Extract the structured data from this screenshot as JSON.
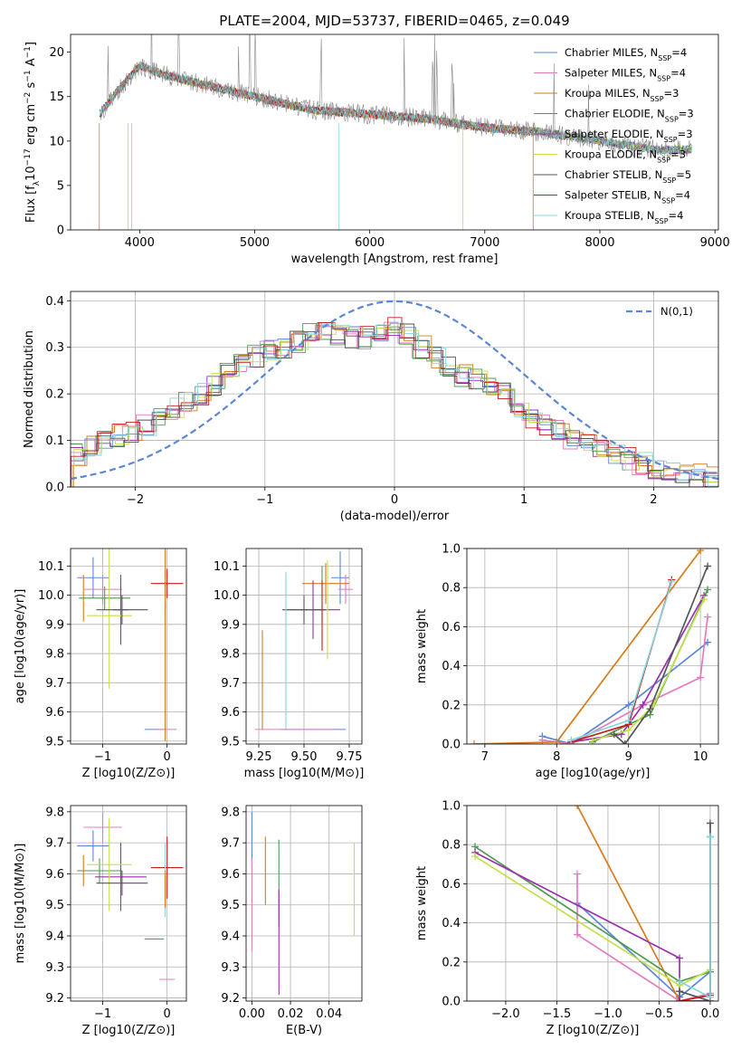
{
  "colors": {
    "series": [
      "#5b87d4",
      "#e37cbf",
      "#d97a1a",
      "#4f9a4f",
      "#9b2fb0",
      "#c2e04a",
      "#555555",
      "#c51c1c",
      "#86d6dc"
    ],
    "gauss": "#5b87d4"
  },
  "chart_data": [
    {
      "type": "line",
      "title": "PLATE=2004, MJD=53737, FIBERID=0465, z=0.049",
      "xlabel": "wavelength [Angstrom, rest frame]",
      "ylabel_parts": [
        "Flux [f",
        "λ",
        "10",
        "−17",
        " erg cm",
        "−2",
        " s",
        "−1",
        " A",
        "−1",
        "]"
      ],
      "xlim": [
        3400,
        9030
      ],
      "ylim": [
        0,
        22
      ],
      "xticks": [
        4000,
        5000,
        6000,
        7000,
        8000,
        9000
      ],
      "yticks": [
        0,
        5,
        10,
        15,
        20
      ],
      "legend_position": "top-right",
      "legend": [
        {
          "name": "Chabrier MILES",
          "n": "4"
        },
        {
          "name": "Salpeter MILES",
          "n": "4"
        },
        {
          "name": "Kroupa MILES",
          "n": "3"
        },
        {
          "name": "Chabrier ELODIE",
          "n": "3"
        },
        {
          "name": "Salpeter ELODIE",
          "n": "3"
        },
        {
          "name": "Kroupa ELODIE",
          "n": "3"
        },
        {
          "name": "Chabrier STELIB",
          "n": "5"
        },
        {
          "name": "Salpeter STELIB",
          "n": "4"
        },
        {
          "name": "Kroupa STELIB",
          "n": "4"
        }
      ],
      "legend_sub": "SSP",
      "legend_prefix": "N",
      "continuum": [
        [
          3650,
          13.0
        ],
        [
          3800,
          15.5
        ],
        [
          4000,
          18.5
        ],
        [
          4200,
          17.5
        ],
        [
          4500,
          16.5
        ],
        [
          5000,
          15.0
        ],
        [
          5500,
          13.5
        ],
        [
          6000,
          13.0
        ],
        [
          6500,
          12.5
        ],
        [
          7000,
          11.5
        ],
        [
          7500,
          11.0
        ],
        [
          8000,
          10.0
        ],
        [
          8500,
          9.0
        ],
        [
          8800,
          9.0
        ]
      ]
    },
    {
      "type": "step",
      "xlabel": "(data-model)/error",
      "ylabel": "Normed distribution",
      "xlim": [
        -2.5,
        2.5
      ],
      "ylim": [
        0,
        0.42
      ],
      "xticks": [
        -2,
        -1,
        0,
        1,
        2
      ],
      "yticks": [
        0.0,
        0.1,
        0.2,
        0.3,
        0.4
      ],
      "grid": true,
      "legend_position": "top-right",
      "legend": "N(0,1)",
      "histogram_mean": [
        0.07,
        0.09,
        0.1,
        0.11,
        0.12,
        0.135,
        0.15,
        0.17,
        0.18,
        0.2,
        0.22,
        0.25,
        0.27,
        0.28,
        0.29,
        0.3,
        0.31,
        0.33,
        0.34,
        0.33,
        0.32,
        0.32,
        0.33,
        0.34,
        0.33,
        0.3,
        0.28,
        0.26,
        0.24,
        0.23,
        0.22,
        0.2,
        0.17,
        0.15,
        0.13,
        0.12,
        0.1,
        0.09,
        0.08,
        0.07,
        0.06,
        0.05,
        0.04,
        0.035,
        0.03,
        0.025,
        0.02
      ]
    },
    {
      "type": "scatter",
      "xlabel": "Z [log10(Z/Z⊙)]",
      "ylabel": "age [log10(age/yr)]",
      "xlim": [
        -1.5,
        0.3
      ],
      "ylim": [
        9.49,
        10.16
      ],
      "xticks": [
        -1,
        0
      ],
      "yticks": [
        9.5,
        9.6,
        9.7,
        9.8,
        9.9,
        10.0,
        10.1
      ],
      "grid": true,
      "points": [
        {
          "x": -1.15,
          "y": 10.06,
          "xe": 0.25,
          "ye": 0.07
        },
        {
          "x": -1.0,
          "y": 10.02,
          "xe": 0.3,
          "ye": 0.05
        },
        {
          "x": -1.3,
          "y": 9.99,
          "xe": 0.0,
          "ye": 0.08
        },
        {
          "x": -0.97,
          "y": 9.99,
          "xe": 0.4,
          "ye": 0.04
        },
        {
          "x": -0.72,
          "y": 9.95,
          "xe": 0.12,
          "ye": 0.12
        },
        {
          "x": -0.9,
          "y": 9.93,
          "xe": 0.35,
          "ye": 0.25
        },
        {
          "x": -0.7,
          "y": 9.95,
          "xe": 0.4,
          "ye": 0.05
        },
        {
          "x": 0.0,
          "y": 10.04,
          "xe": 0.25,
          "ye": 0.05
        },
        {
          "x": -0.03,
          "y": 10.0,
          "xe": 0.0,
          "ye": 0.08
        },
        {
          "x": -0.2,
          "y": 9.54,
          "xe": 0.15,
          "ye": 0.0
        },
        {
          "x": 0.0,
          "y": 9.54,
          "xe": 0.15,
          "ye": 0.0
        },
        {
          "x": -0.03,
          "y": 9.86,
          "xe": 0.0,
          "ye": 0.36
        }
      ]
    },
    {
      "type": "scatter",
      "xlabel": "mass [log10(M/M⊙)]",
      "xlim": [
        9.18,
        9.82
      ],
      "ylim": [
        9.49,
        10.16
      ],
      "xticks": [
        9.25,
        9.5,
        9.75
      ],
      "xtick_labels": [
        "9.25",
        "9.50",
        "9.75"
      ],
      "yticks": [
        9.5,
        9.6,
        9.7,
        9.8,
        9.9,
        10.0,
        10.1
      ],
      "grid": true,
      "points": [
        {
          "x": 9.7,
          "y": 10.06,
          "xe": 0.05,
          "ye": 0.09
        },
        {
          "x": 9.73,
          "y": 10.02,
          "xe": 0.04,
          "ye": 0.05
        },
        {
          "x": 9.62,
          "y": 10.04,
          "xe": 0.13,
          "ye": 0.07
        },
        {
          "x": 9.6,
          "y": 10.0,
          "xe": 0.0,
          "ye": 0.1
        },
        {
          "x": 9.55,
          "y": 9.95,
          "xe": 0.15,
          "ye": 0.1
        },
        {
          "x": 9.63,
          "y": 9.95,
          "xe": 0.0,
          "ye": 0.17
        },
        {
          "x": 9.5,
          "y": 9.95,
          "xe": 0.12,
          "ye": 0.05
        },
        {
          "x": 9.6,
          "y": 9.93,
          "xe": 0.0,
          "ye": 0.12
        },
        {
          "x": 9.4,
          "y": 9.81,
          "xe": 0.0,
          "ye": 0.27
        },
        {
          "x": 9.55,
          "y": 9.54,
          "xe": 0.18,
          "ye": 0.0
        },
        {
          "x": 9.45,
          "y": 9.54,
          "xe": 0.22,
          "ye": 0.0
        },
        {
          "x": 9.27,
          "y": 9.71,
          "xe": 0.0,
          "ye": 0.17
        }
      ]
    },
    {
      "type": "line",
      "xlabel": "age [log10(age/yr)]",
      "ylabel": "mass weight",
      "xlim": [
        6.75,
        10.25
      ],
      "ylim": [
        0,
        1
      ],
      "xticks": [
        7,
        8,
        9,
        10
      ],
      "yticks": [
        0.0,
        0.2,
        0.4,
        0.6,
        0.8,
        1.0
      ],
      "grid": true,
      "series": [
        {
          "x": [
            7.8,
            8.2,
            9.0,
            10.1
          ],
          "y": [
            0.04,
            0.0,
            0.2,
            0.52
          ]
        },
        {
          "x": [
            7.8,
            8.2,
            9.2,
            10.0,
            10.1
          ],
          "y": [
            0.02,
            0.0,
            0.2,
            0.34,
            0.65
          ]
        },
        {
          "x": [
            6.85,
            8.0,
            10.0
          ],
          "y": [
            0.0,
            0.01,
            0.99
          ]
        },
        {
          "x": [
            8.5,
            9.0,
            9.3,
            10.1
          ],
          "y": [
            0.01,
            0.1,
            0.15,
            0.79
          ]
        },
        {
          "x": [
            8.2,
            8.9,
            9.2,
            10.05
          ],
          "y": [
            0.01,
            0.05,
            0.2,
            0.76
          ]
        },
        {
          "x": [
            8.5,
            9.0,
            9.35,
            10.05
          ],
          "y": [
            0.02,
            0.07,
            0.2,
            0.74
          ]
        },
        {
          "x": [
            8.8,
            8.95,
            9.3,
            10.1
          ],
          "y": [
            0.05,
            0.0,
            0.18,
            0.91
          ]
        },
        {
          "x": [
            8.2,
            9.0,
            9.6
          ],
          "y": [
            0.01,
            0.1,
            0.84
          ]
        },
        {
          "x": [
            8.2,
            9.0,
            9.6
          ],
          "y": [
            0.02,
            0.12,
            0.83
          ]
        }
      ]
    },
    {
      "type": "scatter",
      "xlabel": "Z [log10(Z/Z⊙)]",
      "ylabel": "mass [log10(M/M⊙)]",
      "xlim": [
        -1.5,
        0.3
      ],
      "ylim": [
        9.19,
        9.82
      ],
      "xticks": [
        -1,
        0
      ],
      "yticks": [
        9.2,
        9.3,
        9.4,
        9.5,
        9.6,
        9.7,
        9.8
      ],
      "grid": true,
      "points": [
        {
          "x": -1.15,
          "y": 9.69,
          "xe": 0.25,
          "ye": 0.05
        },
        {
          "x": -1.0,
          "y": 9.75,
          "xe": 0.3,
          "ye": 0.05
        },
        {
          "x": -1.3,
          "y": 9.61,
          "xe": 0.0,
          "ye": 0.05
        },
        {
          "x": -1.05,
          "y": 9.61,
          "xe": 0.35,
          "ye": 0.04
        },
        {
          "x": -0.72,
          "y": 9.59,
          "xe": 0.4,
          "ye": 0.11
        },
        {
          "x": -0.9,
          "y": 9.63,
          "xe": 0.35,
          "ye": 0.15
        },
        {
          "x": -0.7,
          "y": 9.57,
          "xe": 0.4,
          "ye": 0.04
        },
        {
          "x": 0.0,
          "y": 9.62,
          "xe": 0.25,
          "ye": 0.1
        },
        {
          "x": -0.03,
          "y": 9.58,
          "xe": 0.0,
          "ye": 0.12
        },
        {
          "x": -0.2,
          "y": 9.39,
          "xe": 0.15,
          "ye": 0.0
        },
        {
          "x": 0.0,
          "y": 9.26,
          "xe": 0.12,
          "ye": 0.0
        },
        {
          "x": -0.03,
          "y": 9.55,
          "xe": 0.0,
          "ye": 0.06
        }
      ]
    },
    {
      "type": "scatter",
      "xlabel": "E(B-V)",
      "xlim": [
        -0.003,
        0.057
      ],
      "ylim": [
        9.19,
        9.82
      ],
      "xticks": [
        0.0,
        0.02,
        0.04
      ],
      "xtick_labels": [
        "0.00",
        "0.02",
        "0.04"
      ],
      "yticks": [
        9.2,
        9.3,
        9.4,
        9.5,
        9.6,
        9.7,
        9.8
      ],
      "grid": true,
      "points": [
        {
          "x": 0.0,
          "y": 9.72,
          "xe": 0.0,
          "ye": 0.08
        },
        {
          "x": 0.0,
          "y": 9.5,
          "xe": 0.0,
          "ye": 0.15
        },
        {
          "x": 0.007,
          "y": 9.61,
          "xe": 0.0,
          "ye": 0.11
        },
        {
          "x": 0.014,
          "y": 9.57,
          "xe": 0.0,
          "ye": 0.14
        },
        {
          "x": 0.014,
          "y": 9.38,
          "xe": 0.0,
          "ye": 0.17
        },
        {
          "x": 0.053,
          "y": 9.55,
          "xe": 0.0,
          "ye": 0.15
        }
      ]
    },
    {
      "type": "line",
      "xlabel": "Z [log10(Z/Z⊙)]",
      "ylabel": "mass weight",
      "xlim": [
        -2.38,
        0.08
      ],
      "ylim": [
        0,
        1
      ],
      "xticks": [
        -2.0,
        -1.5,
        -1.0,
        -0.5,
        0.0
      ],
      "xtick_labels": [
        "−2.0",
        "−1.5",
        "−1.0",
        "−0.5",
        "0.0"
      ],
      "yticks": [
        0.0,
        0.2,
        0.4,
        0.6,
        0.8,
        1.0
      ],
      "grid": true,
      "series": [
        {
          "x": [
            -1.3,
            -0.3,
            0.0
          ],
          "y": [
            0.5,
            0.02,
            0.15
          ]
        },
        {
          "x": [
            -1.3,
            -1.3,
            -0.3,
            0.0
          ],
          "y": [
            0.65,
            0.34,
            0.0,
            0.04
          ]
        },
        {
          "x": [
            -1.3,
            -0.3,
            0.0
          ],
          "y": [
            1.0,
            0.0,
            0.0
          ]
        },
        {
          "x": [
            -2.3,
            -0.3,
            0.0
          ],
          "y": [
            0.79,
            0.1,
            0.15
          ]
        },
        {
          "x": [
            -2.3,
            -0.3,
            -0.3,
            0.0
          ],
          "y": [
            0.76,
            0.22,
            0.0,
            0.0
          ]
        },
        {
          "x": [
            -2.3,
            -0.3,
            0.0
          ],
          "y": [
            0.74,
            0.08,
            0.16
          ]
        },
        {
          "x": [
            -0.3,
            0.0,
            0.0
          ],
          "y": [
            0.05,
            0.0,
            0.91
          ]
        },
        {
          "x": [
            -0.3,
            0.0,
            0.0
          ],
          "y": [
            0.0,
            0.03,
            0.84
          ]
        },
        {
          "x": [
            -0.3,
            0.0,
            0.0
          ],
          "y": [
            0.1,
            0.02,
            0.84
          ]
        }
      ]
    }
  ]
}
